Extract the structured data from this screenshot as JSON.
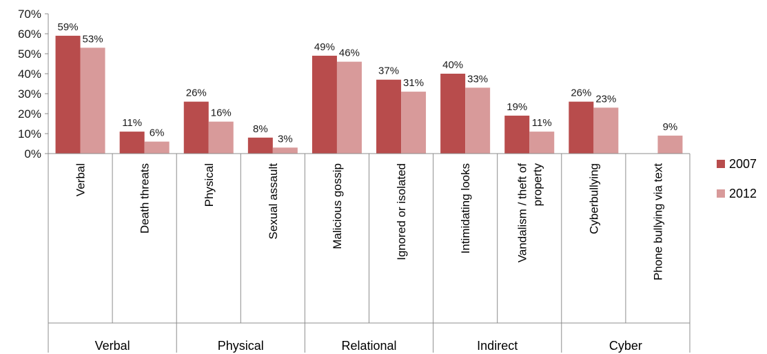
{
  "chart_data": {
    "type": "bar",
    "categories": [
      "Verbal",
      "Death threats",
      "Physical",
      "Sexual assault",
      "Malicious gossip",
      "Ignored or isolated",
      "Intimidating looks",
      "Vandalism / theft of property",
      "Cyberbullying",
      "Phone bullying via text"
    ],
    "category_lines": [
      [
        "Verbal"
      ],
      [
        "Death threats"
      ],
      [
        "Physical"
      ],
      [
        "Sexual assault"
      ],
      [
        "Malicious gossip"
      ],
      [
        "Ignored or isolated"
      ],
      [
        "Intimidating looks"
      ],
      [
        "Vandalism / theft of",
        "property"
      ],
      [
        "Cyberbullying"
      ],
      [
        "Phone bullying via text"
      ]
    ],
    "groups": [
      {
        "label": "Verbal",
        "span": 2
      },
      {
        "label": "Physical",
        "span": 2
      },
      {
        "label": "Relational",
        "span": 2
      },
      {
        "label": "Indirect",
        "span": 2
      },
      {
        "label": "Cyber",
        "span": 2
      }
    ],
    "series": [
      {
        "name": "2007",
        "color": "#b84c4c",
        "values": [
          59,
          11,
          26,
          8,
          49,
          37,
          40,
          19,
          26,
          null
        ],
        "labels": [
          "59%",
          "11%",
          "26%",
          "8%",
          "49%",
          "37%",
          "40%",
          "19%",
          "26%",
          ""
        ]
      },
      {
        "name": "2012",
        "color": "#d89a9a",
        "values": [
          53,
          6,
          16,
          3,
          46,
          31,
          33,
          11,
          23,
          9
        ],
        "labels": [
          "53%",
          "6%",
          "16%",
          "3%",
          "46%",
          "31%",
          "33%",
          "11%",
          "23%",
          "9%"
        ]
      }
    ],
    "ylim": [
      0,
      70
    ],
    "yticks": [
      "0%",
      "10%",
      "20%",
      "30%",
      "40%",
      "50%",
      "60%",
      "70%"
    ],
    "ytick_values": [
      0,
      10,
      20,
      30,
      40,
      50,
      60,
      70
    ],
    "legend_position": "right",
    "title": "",
    "xlabel": "",
    "ylabel": ""
  }
}
